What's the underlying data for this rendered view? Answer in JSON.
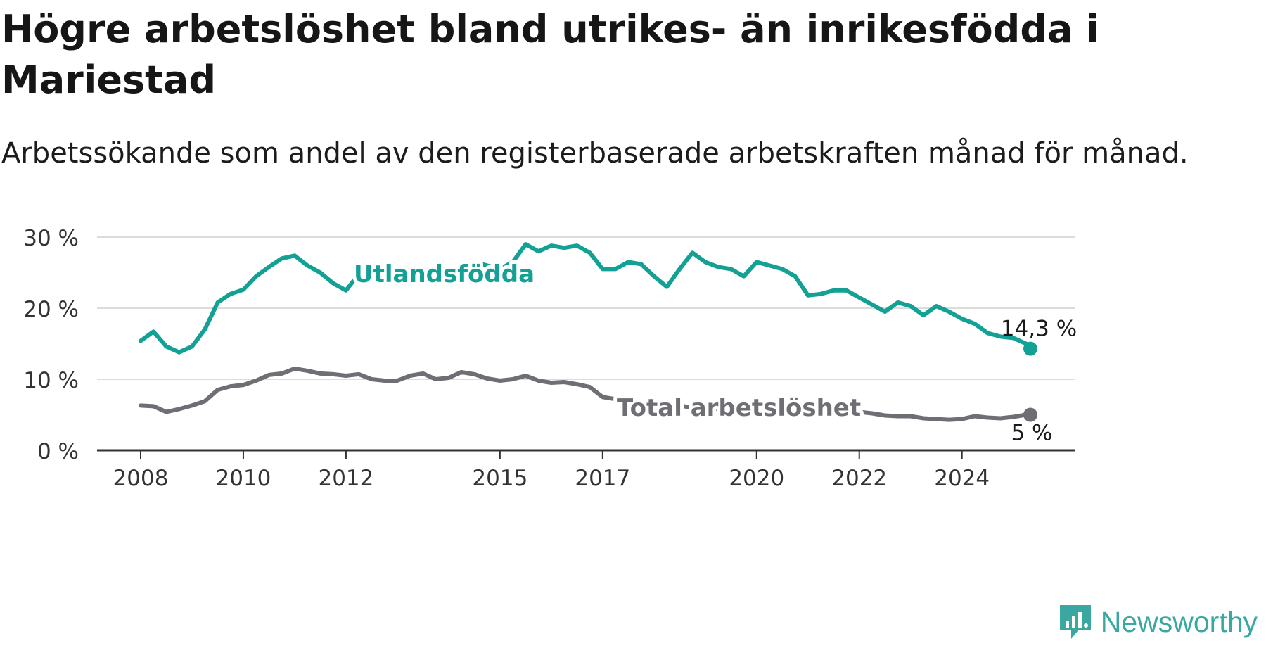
{
  "header": {
    "title": "Högre arbetslöshet bland utrikes- än inrikesfödda i Mariestad",
    "subtitle": "Arbetssökande som andel av den registerbaserade arbetskraften månad för månad."
  },
  "brand": {
    "name": "Newsworthy",
    "icon": "newsworthy-logo-icon",
    "color": "#3aa8a0"
  },
  "chart_data": {
    "type": "line",
    "ylim": [
      0,
      30
    ],
    "yticks": [
      0,
      10,
      20,
      30
    ],
    "ytick_labels": [
      "0 %",
      "10 %",
      "20 %",
      "30 %"
    ],
    "xlim": [
      "2008-01",
      "2025-05"
    ],
    "xticks": [
      "2008-01",
      "2010-01",
      "2012-01",
      "2015-01",
      "2017-01",
      "2020-01",
      "2022-01",
      "2024-01"
    ],
    "xtick_labels": [
      "2008",
      "2010",
      "2012",
      "2015",
      "2017",
      "2020",
      "2022",
      "2024"
    ],
    "grid": "horizontal",
    "series": [
      {
        "name": "Utlandsfödda",
        "color": "#14a195",
        "end_label": "14,3 %",
        "points": [
          [
            "2008-01",
            15.4
          ],
          [
            "2008-04",
            16.7
          ],
          [
            "2008-07",
            14.6
          ],
          [
            "2008-10",
            13.8
          ],
          [
            "2009-01",
            14.6
          ],
          [
            "2009-04",
            17.0
          ],
          [
            "2009-07",
            20.8
          ],
          [
            "2009-10",
            22.0
          ],
          [
            "2010-01",
            22.6
          ],
          [
            "2010-04",
            24.5
          ],
          [
            "2010-07",
            25.8
          ],
          [
            "2010-10",
            27.0
          ],
          [
            "2011-01",
            27.4
          ],
          [
            "2011-04",
            26.0
          ],
          [
            "2011-07",
            25.0
          ],
          [
            "2011-10",
            23.5
          ],
          [
            "2012-01",
            22.5
          ],
          [
            "2012-04",
            24.8
          ],
          [
            "2012-07",
            25.0
          ],
          [
            "2012-10",
            24.5
          ],
          [
            "2013-01",
            24.0
          ],
          [
            "2013-04",
            25.0
          ],
          [
            "2013-07",
            25.0
          ],
          [
            "2013-10",
            23.5
          ],
          [
            "2014-01",
            23.8
          ],
          [
            "2014-04",
            25.5
          ],
          [
            "2014-07",
            26.5
          ],
          [
            "2014-10",
            26.0
          ],
          [
            "2015-01",
            25.5
          ],
          [
            "2015-04",
            26.5
          ],
          [
            "2015-07",
            29.0
          ],
          [
            "2015-10",
            28.0
          ],
          [
            "2016-01",
            28.8
          ],
          [
            "2016-04",
            28.5
          ],
          [
            "2016-07",
            28.8
          ],
          [
            "2016-10",
            27.8
          ],
          [
            "2017-01",
            25.5
          ],
          [
            "2017-04",
            25.5
          ],
          [
            "2017-07",
            26.5
          ],
          [
            "2017-10",
            26.2
          ],
          [
            "2018-01",
            24.5
          ],
          [
            "2018-04",
            23.0
          ],
          [
            "2018-07",
            25.5
          ],
          [
            "2018-10",
            27.8
          ],
          [
            "2019-01",
            26.5
          ],
          [
            "2019-04",
            25.8
          ],
          [
            "2019-07",
            25.5
          ],
          [
            "2019-10",
            24.5
          ],
          [
            "2020-01",
            26.5
          ],
          [
            "2020-04",
            26.0
          ],
          [
            "2020-07",
            25.5
          ],
          [
            "2020-10",
            24.5
          ],
          [
            "2021-01",
            21.8
          ],
          [
            "2021-04",
            22.0
          ],
          [
            "2021-07",
            22.5
          ],
          [
            "2021-10",
            22.5
          ],
          [
            "2022-01",
            21.5
          ],
          [
            "2022-04",
            20.5
          ],
          [
            "2022-07",
            19.5
          ],
          [
            "2022-10",
            20.8
          ],
          [
            "2023-01",
            20.3
          ],
          [
            "2023-04",
            19.0
          ],
          [
            "2023-07",
            20.3
          ],
          [
            "2023-10",
            19.5
          ],
          [
            "2024-01",
            18.5
          ],
          [
            "2024-04",
            17.8
          ],
          [
            "2024-07",
            16.5
          ],
          [
            "2024-10",
            16.0
          ],
          [
            "2025-01",
            15.8
          ],
          [
            "2025-04",
            15.0
          ],
          [
            "2025-05",
            14.3
          ]
        ]
      },
      {
        "name": "Total arbetslöshet",
        "color": "#6f6e74",
        "end_label": "5 %",
        "points": [
          [
            "2008-01",
            6.3
          ],
          [
            "2008-04",
            6.2
          ],
          [
            "2008-07",
            5.4
          ],
          [
            "2008-10",
            5.8
          ],
          [
            "2009-01",
            6.3
          ],
          [
            "2009-04",
            6.9
          ],
          [
            "2009-07",
            8.5
          ],
          [
            "2009-10",
            9.0
          ],
          [
            "2010-01",
            9.2
          ],
          [
            "2010-04",
            9.8
          ],
          [
            "2010-07",
            10.6
          ],
          [
            "2010-10",
            10.8
          ],
          [
            "2011-01",
            11.5
          ],
          [
            "2011-04",
            11.2
          ],
          [
            "2011-07",
            10.8
          ],
          [
            "2011-10",
            10.7
          ],
          [
            "2012-01",
            10.5
          ],
          [
            "2012-04",
            10.7
          ],
          [
            "2012-07",
            10.0
          ],
          [
            "2012-10",
            9.8
          ],
          [
            "2013-01",
            9.8
          ],
          [
            "2013-04",
            10.5
          ],
          [
            "2013-07",
            10.8
          ],
          [
            "2013-10",
            10.0
          ],
          [
            "2014-01",
            10.2
          ],
          [
            "2014-04",
            11.0
          ],
          [
            "2014-07",
            10.7
          ],
          [
            "2014-10",
            10.1
          ],
          [
            "2015-01",
            9.8
          ],
          [
            "2015-04",
            10.0
          ],
          [
            "2015-07",
            10.5
          ],
          [
            "2015-10",
            9.8
          ],
          [
            "2016-01",
            9.5
          ],
          [
            "2016-04",
            9.6
          ],
          [
            "2016-07",
            9.3
          ],
          [
            "2016-10",
            8.9
          ],
          [
            "2017-01",
            7.5
          ],
          [
            "2017-04",
            7.2
          ],
          [
            "2017-07",
            7.0
          ],
          [
            "2017-10",
            6.8
          ],
          [
            "2018-01",
            6.9
          ],
          [
            "2018-04",
            6.6
          ],
          [
            "2018-07",
            6.3
          ],
          [
            "2018-10",
            6.0
          ],
          [
            "2019-01",
            5.9
          ],
          [
            "2019-04",
            5.8
          ],
          [
            "2019-07",
            5.7
          ],
          [
            "2019-10",
            5.7
          ],
          [
            "2020-01",
            6.0
          ],
          [
            "2020-04",
            6.2
          ],
          [
            "2020-07",
            6.0
          ],
          [
            "2020-10",
            5.9
          ],
          [
            "2021-01",
            5.8
          ],
          [
            "2021-04",
            5.7
          ],
          [
            "2021-07",
            5.7
          ],
          [
            "2021-10",
            5.6
          ],
          [
            "2022-01",
            5.4
          ],
          [
            "2022-04",
            5.2
          ],
          [
            "2022-07",
            4.9
          ],
          [
            "2022-10",
            4.8
          ],
          [
            "2023-01",
            4.8
          ],
          [
            "2023-04",
            4.5
          ],
          [
            "2023-07",
            4.4
          ],
          [
            "2023-10",
            4.3
          ],
          [
            "2024-01",
            4.4
          ],
          [
            "2024-04",
            4.8
          ],
          [
            "2024-07",
            4.6
          ],
          [
            "2024-10",
            4.5
          ],
          [
            "2025-01",
            4.7
          ],
          [
            "2025-04",
            5.0
          ],
          [
            "2025-05",
            5.0
          ]
        ]
      }
    ]
  }
}
